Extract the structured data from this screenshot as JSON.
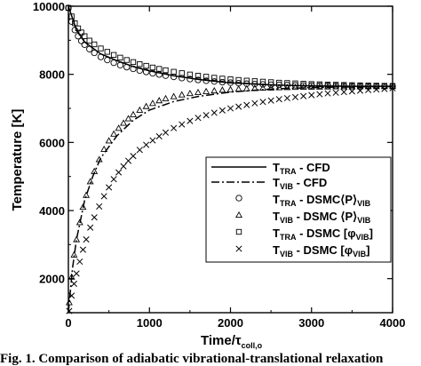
{
  "chart_data": {
    "type": "line",
    "title": "",
    "xlabel": {
      "main": "Time/",
      "tau": "τ",
      "sub": "coll,o"
    },
    "ylabel": "Temperature [K]",
    "xlim": [
      0,
      4000
    ],
    "ylim": [
      1000,
      10000
    ],
    "x_ticks": [
      0,
      1000,
      2000,
      3000,
      4000
    ],
    "y_ticks": [
      2000,
      4000,
      6000,
      8000,
      10000
    ],
    "y_tick_labels": [
      "2000",
      "4000",
      "6000",
      "8000",
      "10000"
    ],
    "grid": false,
    "legend_position": "bottom-right",
    "legend": [
      {
        "marker": "solid-line",
        "symbol": "T",
        "sub": "TRA",
        "text": " - CFD"
      },
      {
        "marker": "dashdot-line",
        "symbol": "T",
        "sub": "VIB",
        "text": " - CFD"
      },
      {
        "marker": "circle",
        "symbol": "T",
        "sub": "TRA",
        "text": " - DSMC",
        "bracket": "⟨P⟩",
        "bracket_sub": "VIB",
        "bracket_close": ""
      },
      {
        "marker": "triangle",
        "symbol": "T",
        "sub": "VIB",
        "text": " - DSMC ",
        "bracket": "⟨P⟩",
        "bracket_sub": "VIB",
        "bracket_close": ""
      },
      {
        "marker": "square",
        "symbol": "T",
        "sub": "TRA",
        "text": " - DSMC ",
        "bracket": "[φ",
        "bracket_sub": "VIB",
        "bracket_close": "]"
      },
      {
        "marker": "cross",
        "symbol": "T",
        "sub": "VIB",
        "text": " - DSMC ",
        "bracket": "[φ",
        "bracket_sub": "VIB",
        "bracket_close": "]"
      }
    ],
    "series": [
      {
        "id": "ttra_cfd",
        "style": "solid",
        "x": [
          0,
          100,
          200,
          400,
          600,
          800,
          1000,
          1300,
          1600,
          2000,
          2500,
          3000,
          3500,
          4000
        ],
        "y": [
          10000,
          9300,
          8950,
          8600,
          8400,
          8230,
          8100,
          7960,
          7850,
          7750,
          7690,
          7660,
          7650,
          7650
        ]
      },
      {
        "id": "tvib_cfd",
        "style": "dashdot",
        "x": [
          0,
          50,
          100,
          200,
          300,
          400,
          600,
          800,
          1000,
          1300,
          1600,
          2000,
          2500,
          3000,
          3500,
          4000
        ],
        "y": [
          1000,
          2300,
          3150,
          4300,
          5000,
          5550,
          6200,
          6650,
          6950,
          7200,
          7350,
          7480,
          7570,
          7610,
          7630,
          7640
        ]
      },
      {
        "id": "ttra_dsmc_p",
        "marker": "circle",
        "x": [
          0,
          40,
          80,
          120,
          160,
          200,
          260,
          320,
          400,
          480,
          560,
          640,
          720,
          800,
          880,
          960,
          1040,
          1120,
          1200,
          1300,
          1400,
          1500,
          1600,
          1700,
          1800,
          1900,
          2000,
          2100,
          2200,
          2300,
          2400,
          2500,
          2600,
          2700,
          2800,
          2900,
          3000,
          3100,
          3200,
          3300,
          3400,
          3500,
          3600,
          3700,
          3800,
          3900,
          4000
        ],
        "y": [
          9950,
          9550,
          9300,
          9120,
          8980,
          8870,
          8740,
          8630,
          8510,
          8420,
          8340,
          8270,
          8210,
          8160,
          8110,
          8070,
          8030,
          7995,
          7960,
          7925,
          7890,
          7860,
          7835,
          7810,
          7790,
          7770,
          7755,
          7740,
          7725,
          7715,
          7705,
          7695,
          7690,
          7685,
          7678,
          7672,
          7668,
          7664,
          7660,
          7658,
          7655,
          7653,
          7651,
          7650,
          7649,
          7648,
          7647
        ]
      },
      {
        "id": "tvib_dsmc_p",
        "marker": "triangle",
        "x": [
          10,
          40,
          70,
          100,
          140,
          180,
          220,
          270,
          320,
          380,
          440,
          500,
          560,
          620,
          680,
          740,
          800,
          880,
          960,
          1040,
          1120,
          1200,
          1300,
          1400,
          1500,
          1600,
          1700,
          1800,
          1900,
          2000,
          2100,
          2200,
          2300,
          2400,
          2500,
          2600,
          2700,
          2800,
          2900,
          3000,
          3100,
          3200,
          3300,
          3400,
          3500,
          3600,
          3700,
          3800,
          3900,
          4000
        ],
        "y": [
          1300,
          2050,
          2700,
          3150,
          3650,
          4100,
          4450,
          4850,
          5150,
          5500,
          5800,
          6050,
          6250,
          6420,
          6570,
          6700,
          6820,
          6950,
          7060,
          7150,
          7230,
          7290,
          7350,
          7400,
          7440,
          7470,
          7500,
          7520,
          7540,
          7555,
          7570,
          7580,
          7590,
          7600,
          7605,
          7612,
          7618,
          7622,
          7626,
          7630,
          7633,
          7636,
          7638,
          7640,
          7641,
          7643,
          7644,
          7645,
          7646,
          7647
        ]
      },
      {
        "id": "ttra_dsmc_phi",
        "marker": "square",
        "x": [
          0,
          40,
          80,
          120,
          160,
          200,
          260,
          320,
          400,
          480,
          560,
          640,
          720,
          800,
          880,
          960,
          1040,
          1120,
          1200,
          1300,
          1400,
          1500,
          1600,
          1700,
          1800,
          1900,
          2000,
          2100,
          2200,
          2300,
          2400,
          2500,
          2600,
          2700,
          2800,
          2900,
          3000,
          3100,
          3200,
          3300,
          3400,
          3500,
          3600,
          3700,
          3800,
          3900,
          4000
        ],
        "y": [
          9950,
          9700,
          9500,
          9350,
          9230,
          9120,
          8990,
          8880,
          8760,
          8660,
          8570,
          8490,
          8420,
          8360,
          8300,
          8250,
          8200,
          8160,
          8120,
          8075,
          8035,
          7995,
          7960,
          7930,
          7900,
          7875,
          7855,
          7835,
          7815,
          7800,
          7785,
          7770,
          7755,
          7745,
          7735,
          7725,
          7715,
          7708,
          7700,
          7694,
          7688,
          7682,
          7677,
          7672,
          7668,
          7663,
          7660
        ]
      },
      {
        "id": "tvib_dsmc_phi",
        "marker": "cross",
        "x": [
          10,
          40,
          70,
          100,
          140,
          180,
          220,
          270,
          320,
          380,
          440,
          500,
          560,
          620,
          680,
          740,
          800,
          880,
          960,
          1040,
          1120,
          1200,
          1300,
          1400,
          1500,
          1600,
          1700,
          1800,
          1900,
          2000,
          2100,
          2200,
          2300,
          2400,
          2500,
          2600,
          2700,
          2800,
          2900,
          3000,
          3100,
          3200,
          3300,
          3400,
          3500,
          3600,
          3700,
          3800,
          3900,
          4000
        ],
        "y": [
          1050,
          1500,
          1850,
          2150,
          2500,
          2850,
          3150,
          3500,
          3800,
          4120,
          4420,
          4680,
          4920,
          5120,
          5300,
          5460,
          5600,
          5780,
          5930,
          6060,
          6180,
          6290,
          6420,
          6530,
          6630,
          6720,
          6800,
          6870,
          6940,
          7000,
          7050,
          7100,
          7150,
          7190,
          7230,
          7270,
          7300,
          7330,
          7360,
          7390,
          7415,
          7440,
          7460,
          7480,
          7500,
          7520,
          7540,
          7555,
          7570,
          7590
        ]
      }
    ]
  },
  "caption": "Fig. 1.  Comparison of adiabatic vibrational-translational relaxation"
}
